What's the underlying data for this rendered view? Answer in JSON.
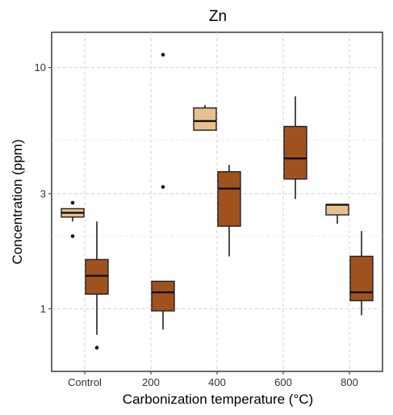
{
  "chart_data": {
    "type": "box",
    "title": "Zn",
    "xlabel": "Carbonization temperature (°C)",
    "ylabel": "Concentration (ppm)",
    "y_scale": "log",
    "ylim": [
      0.55,
      14
    ],
    "y_ticks": [
      1,
      3,
      10
    ],
    "y_tick_labels": [
      "1",
      "3",
      "10"
    ],
    "y_minor_gridlines": [
      0.5,
      2,
      5
    ],
    "grid": true,
    "categories": [
      "Control",
      "200",
      "400",
      "600",
      "800"
    ],
    "fill_colors": [
      "#E8BF8F",
      "#A0521E"
    ],
    "boxes": [
      {
        "category": "Control",
        "group": 0,
        "whisker_low": 2.3,
        "q1": 2.4,
        "median": 2.5,
        "q3": 2.6,
        "whisker_high": 2.6,
        "outliers": [
          2.75,
          2.0
        ]
      },
      {
        "category": "Control",
        "group": 1,
        "whisker_low": 0.78,
        "q1": 1.15,
        "median": 1.37,
        "q3": 1.6,
        "whisker_high": 2.3,
        "outliers": [
          0.69
        ]
      },
      {
        "category": "200",
        "group": 1,
        "whisker_low": 0.82,
        "q1": 0.98,
        "median": 1.17,
        "q3": 1.3,
        "whisker_high": 1.3,
        "outliers": [
          11.3,
          3.2
        ]
      },
      {
        "category": "400",
        "group": 0,
        "whisker_low": 5.5,
        "q1": 5.5,
        "median": 6.0,
        "q3": 6.8,
        "whisker_high": 7.0,
        "outliers": []
      },
      {
        "category": "400",
        "group": 1,
        "whisker_low": 1.65,
        "q1": 2.2,
        "median": 3.15,
        "q3": 3.7,
        "whisker_high": 3.95,
        "outliers": []
      },
      {
        "category": "600",
        "group": 1,
        "whisker_low": 2.85,
        "q1": 3.45,
        "median": 4.2,
        "q3": 5.7,
        "whisker_high": 7.6,
        "outliers": []
      },
      {
        "category": "800",
        "group": 0,
        "whisker_low": 2.25,
        "q1": 2.45,
        "median": 2.7,
        "q3": 2.7,
        "whisker_high": 2.7,
        "outliers": []
      },
      {
        "category": "800",
        "group": 1,
        "whisker_low": 0.94,
        "q1": 1.08,
        "median": 1.17,
        "q3": 1.65,
        "whisker_high": 2.1,
        "outliers": []
      }
    ]
  }
}
